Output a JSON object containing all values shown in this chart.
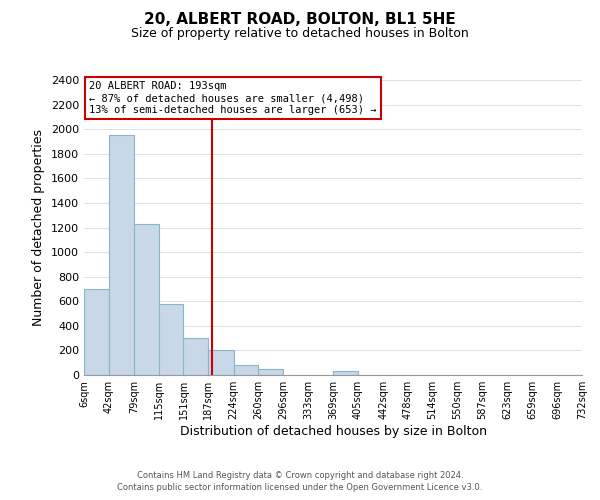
{
  "title": "20, ALBERT ROAD, BOLTON, BL1 5HE",
  "subtitle": "Size of property relative to detached houses in Bolton",
  "xlabel": "Distribution of detached houses by size in Bolton",
  "ylabel": "Number of detached properties",
  "bar_color": "#c8d8e8",
  "bar_edge_color": "#8ab4cc",
  "vline_x": 193,
  "vline_color": "#cc0000",
  "bin_edges": [
    6,
    42,
    79,
    115,
    151,
    187,
    224,
    260,
    296,
    333,
    369,
    405,
    442,
    478,
    514,
    550,
    587,
    623,
    659,
    696,
    732
  ],
  "bar_heights": [
    700,
    1950,
    1230,
    580,
    300,
    200,
    80,
    45,
    0,
    0,
    35,
    0,
    0,
    0,
    0,
    0,
    0,
    0,
    0,
    0
  ],
  "annotation_title": "20 ALBERT ROAD: 193sqm",
  "annotation_line1": "← 87% of detached houses are smaller (4,498)",
  "annotation_line2": "13% of semi-detached houses are larger (653) →",
  "annotation_box_color": "#ffffff",
  "annotation_box_edge": "#cc0000",
  "ylim": [
    0,
    2400
  ],
  "yticks": [
    0,
    200,
    400,
    600,
    800,
    1000,
    1200,
    1400,
    1600,
    1800,
    2000,
    2200,
    2400
  ],
  "footer_line1": "Contains HM Land Registry data © Crown copyright and database right 2024.",
  "footer_line2": "Contains public sector information licensed under the Open Government Licence v3.0.",
  "bg_color": "#ffffff",
  "grid_color": "#e0e0e0"
}
